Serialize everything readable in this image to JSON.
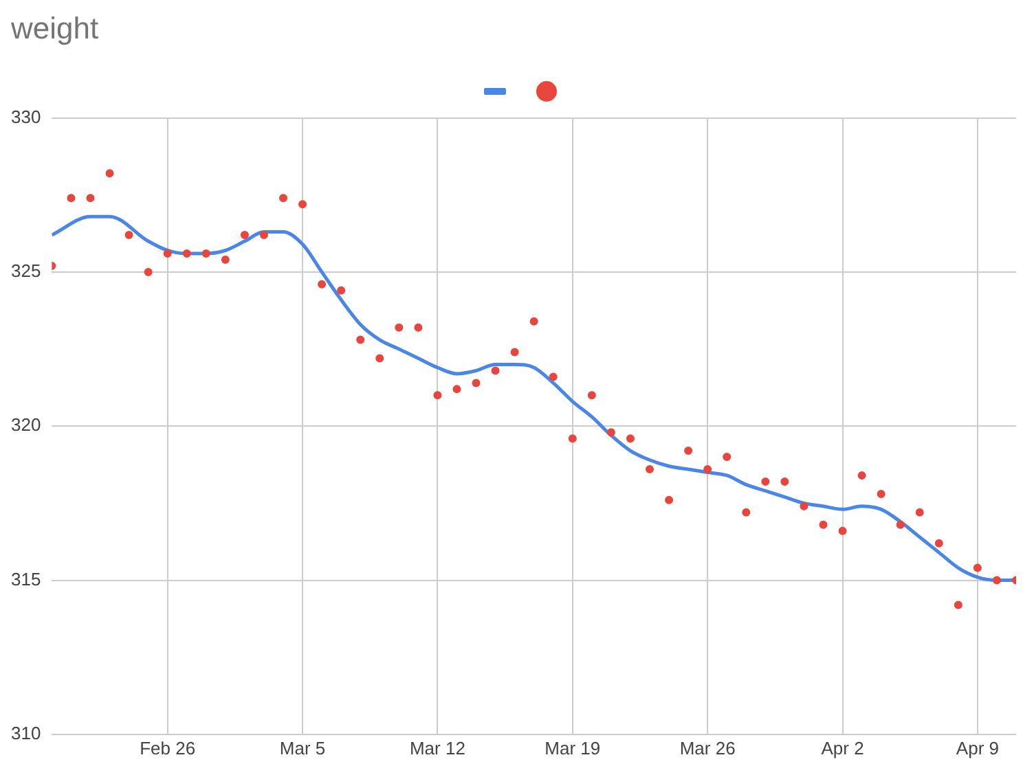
{
  "chart_data": {
    "type": "scatter",
    "title": "weight",
    "xlim": [
      "--02-20",
      "--04-11"
    ],
    "xticks": [
      {
        "value": "--02-26",
        "label": "Feb 26"
      },
      {
        "value": "--03-05",
        "label": "Mar 5"
      },
      {
        "value": "--03-12",
        "label": "Mar 12"
      },
      {
        "value": "--03-19",
        "label": "Mar 19"
      },
      {
        "value": "--03-26",
        "label": "Mar 26"
      },
      {
        "value": "--04-02",
        "label": "Apr 2"
      },
      {
        "value": "--04-09",
        "label": "Apr 9"
      }
    ],
    "ylim": [
      310,
      330
    ],
    "yticks": [
      310,
      315,
      320,
      325,
      330
    ],
    "grid": true,
    "series": [
      {
        "type": "line",
        "color": "#4a86e8",
        "marker": "none",
        "x": [
          "--02-20",
          "--02-22",
          "--02-23",
          "--02-25",
          "--02-26",
          "--02-27",
          "--02-28",
          "--03-01",
          "--03-02",
          "--03-03",
          "--03-04",
          "--03-05",
          "--03-06",
          "--03-07",
          "--03-08",
          "--03-09",
          "--03-10",
          "--03-11",
          "--03-12",
          "--03-13",
          "--03-14",
          "--03-15",
          "--03-16",
          "--03-17",
          "--03-18",
          "--03-19",
          "--03-20",
          "--03-21",
          "--03-22",
          "--03-23",
          "--03-24",
          "--03-25",
          "--03-26",
          "--03-27",
          "--03-28",
          "--03-29",
          "--03-30",
          "--03-31",
          "--04-01",
          "--04-02",
          "--04-03",
          "--04-04",
          "--04-05",
          "--04-06",
          "--04-07",
          "--04-08",
          "--04-09",
          "--04-10",
          "--04-11"
        ],
        "values": [
          326.2,
          326.8,
          326.8,
          326.0,
          325.7,
          325.6,
          325.6,
          325.7,
          326.0,
          326.3,
          326.3,
          325.9,
          325.0,
          324.1,
          323.3,
          322.8,
          322.5,
          322.2,
          321.9,
          321.7,
          321.8,
          322.0,
          322.0,
          321.9,
          321.4,
          320.8,
          320.3,
          319.7,
          319.2,
          318.9,
          318.7,
          318.6,
          318.5,
          318.4,
          318.1,
          317.9,
          317.7,
          317.5,
          317.4,
          317.3,
          317.4,
          317.3,
          316.9,
          316.4,
          315.9,
          315.4,
          315.1,
          315.0,
          315.0
        ]
      },
      {
        "color": "#e8453c",
        "marker": "circle",
        "x": [
          "--02-20",
          "--02-21",
          "--02-22",
          "--02-23",
          "--02-24",
          "--02-25",
          "--02-26",
          "--02-27",
          "--02-28",
          "--03-01",
          "--03-02",
          "--03-03",
          "--03-04",
          "--03-05",
          "--03-06",
          "--03-07",
          "--03-08",
          "--03-09",
          "--03-10",
          "--03-11",
          "--03-12",
          "--03-13",
          "--03-14",
          "--03-15",
          "--03-16",
          "--03-17",
          "--03-18",
          "--03-19",
          "--03-20",
          "--03-21",
          "--03-22",
          "--03-23",
          "--03-24",
          "--03-25",
          "--03-26",
          "--03-27",
          "--03-28",
          "--03-29",
          "--03-30",
          "--03-31",
          "--04-01",
          "--04-02",
          "--04-03",
          "--04-04",
          "--04-05",
          "--04-06",
          "--04-07",
          "--04-08",
          "--04-09",
          "--04-10",
          "--04-11"
        ],
        "values": [
          325.2,
          327.4,
          327.4,
          328.2,
          326.2,
          325.0,
          325.6,
          325.6,
          325.6,
          325.4,
          326.2,
          326.2,
          327.4,
          327.2,
          324.6,
          324.4,
          322.8,
          322.2,
          323.2,
          323.2,
          321.0,
          321.2,
          321.4,
          321.8,
          322.4,
          323.4,
          321.6,
          319.6,
          321.0,
          319.8,
          319.6,
          318.6,
          317.6,
          319.2,
          318.6,
          319.0,
          317.2,
          318.2,
          318.2,
          317.4,
          316.8,
          316.6,
          318.4,
          317.8,
          316.8,
          317.2,
          316.2,
          314.2,
          315.4,
          315.0,
          315.0
        ]
      }
    ]
  }
}
